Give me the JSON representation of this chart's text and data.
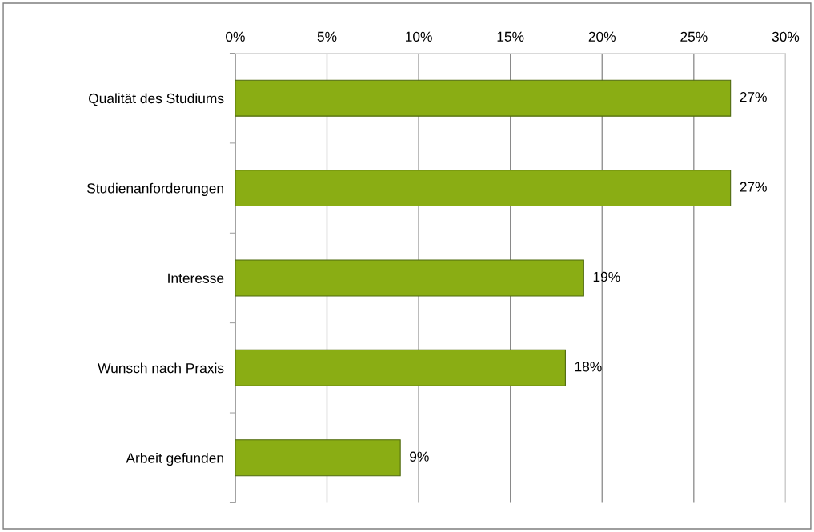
{
  "chart_data": {
    "type": "bar",
    "orientation": "horizontal",
    "categories": [
      "Qualität des Studiums",
      "Studienanforderungen",
      "Interesse",
      "Wunsch nach Praxis",
      "Arbeit gefunden"
    ],
    "values": [
      27,
      27,
      19,
      18,
      9
    ],
    "value_labels": [
      "27%",
      "27%",
      "19%",
      "18%",
      "9%"
    ],
    "color": "#8aad14",
    "xlim": [
      0,
      30
    ],
    "xticks": [
      {
        "value": 0,
        "label": "0%"
      },
      {
        "value": 5,
        "label": "5%"
      },
      {
        "value": 10,
        "label": "10%"
      },
      {
        "value": 15,
        "label": "15%"
      },
      {
        "value": 20,
        "label": "20%"
      },
      {
        "value": 25,
        "label": "25%"
      },
      {
        "value": 30,
        "label": "30%"
      }
    ],
    "grid": "x"
  }
}
